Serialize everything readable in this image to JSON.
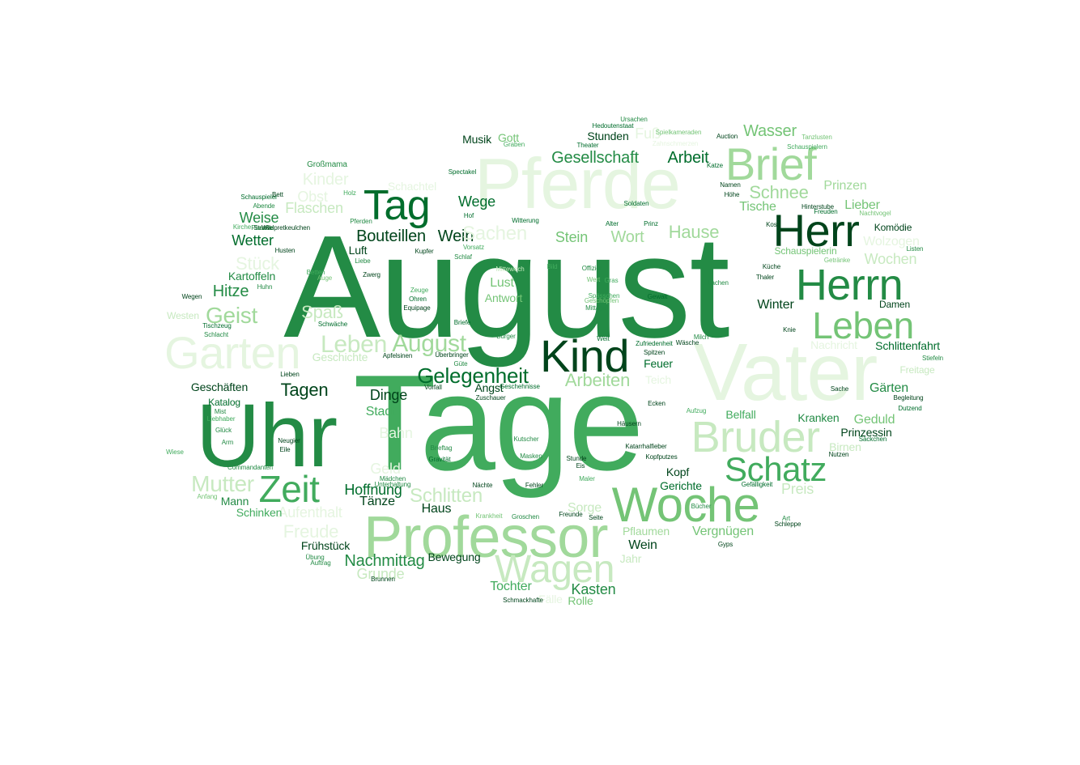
{
  "colors": {
    "background": "#ffffff",
    "palette": [
      "#00441b",
      "#006d2c",
      "#238b45",
      "#41ab5d",
      "#74c476",
      "#a1d99b",
      "#c7e9c0",
      "#e5f5e0"
    ]
  },
  "words": [
    {
      "text": "August",
      "tone": 2
    },
    {
      "text": "Tage",
      "tone": 3
    },
    {
      "text": "Vater",
      "tone": 7
    },
    {
      "text": "Pferde",
      "tone": 7
    },
    {
      "text": "Professor",
      "tone": 5
    },
    {
      "text": "Woche",
      "tone": 4
    },
    {
      "text": "Uhr",
      "tone": 2
    },
    {
      "text": "Herr",
      "tone": 0
    },
    {
      "text": "Herrn",
      "tone": 2
    },
    {
      "text": "Brief",
      "tone": 5
    },
    {
      "text": "Bruder",
      "tone": 6
    },
    {
      "text": "Garten",
      "tone": 7
    },
    {
      "text": "Leben",
      "tone": 4
    },
    {
      "text": "Kind",
      "tone": 0
    },
    {
      "text": "Tag",
      "tone": 1
    },
    {
      "text": "Wagen",
      "tone": 6
    },
    {
      "text": "Schatz",
      "tone": 3
    },
    {
      "text": "Zeit",
      "tone": 3
    },
    {
      "text": "Gelegenheit",
      "tone": 1
    },
    {
      "text": "Leben",
      "tone": 6
    },
    {
      "text": "August",
      "tone": 5
    },
    {
      "text": "Gesellschaft",
      "tone": 2
    },
    {
      "text": "Arbeiten",
      "tone": 5
    },
    {
      "text": "Schnee",
      "tone": 5
    },
    {
      "text": "Wasser",
      "tone": 4
    },
    {
      "text": "Geist",
      "tone": 5
    },
    {
      "text": "Mutter",
      "tone": 6
    },
    {
      "text": "Bouteillen",
      "tone": 0
    },
    {
      "text": "Wein",
      "tone": 0
    },
    {
      "text": "Tagen",
      "tone": 0
    },
    {
      "text": "Hause",
      "tone": 5
    },
    {
      "text": "Schlitten",
      "tone": 6
    },
    {
      "text": "Nachmittag",
      "tone": 2
    },
    {
      "text": "Arbeit",
      "tone": 1
    },
    {
      "text": "Wort",
      "tone": 5
    },
    {
      "text": "Stein",
      "tone": 4
    },
    {
      "text": "Sachen",
      "tone": 7
    },
    {
      "text": "Kinder",
      "tone": 7
    },
    {
      "text": "Obst",
      "tone": 7
    },
    {
      "text": "Flaschen",
      "tone": 6
    },
    {
      "text": "Wetter",
      "tone": 1
    },
    {
      "text": "Weise",
      "tone": 2
    },
    {
      "text": "Stück",
      "tone": 7
    },
    {
      "text": "Hitze",
      "tone": 2
    },
    {
      "text": "Spaß",
      "tone": 6
    },
    {
      "text": "Wege",
      "tone": 1
    },
    {
      "text": "Dinge",
      "tone": 0
    },
    {
      "text": "Stadt",
      "tone": 3
    },
    {
      "text": "Bahn",
      "tone": 7
    },
    {
      "text": "Hoffnung",
      "tone": 1
    },
    {
      "text": "Tänze",
      "tone": 0
    },
    {
      "text": "Haus",
      "tone": 0
    },
    {
      "text": "Freude",
      "tone": 7
    },
    {
      "text": "Aufenthalt",
      "tone": 7
    },
    {
      "text": "Frühstück",
      "tone": 0
    },
    {
      "text": "Bewegung",
      "tone": 0
    },
    {
      "text": "Grunde",
      "tone": 6
    },
    {
      "text": "Tochter",
      "tone": 3
    },
    {
      "text": "Fälle",
      "tone": 7
    },
    {
      "text": "Kasten",
      "tone": 2
    },
    {
      "text": "Rolle",
      "tone": 4
    },
    {
      "text": "Sorge",
      "tone": 6
    },
    {
      "text": "Lust",
      "tone": 4
    },
    {
      "text": "Antwort",
      "tone": 4
    },
    {
      "text": "Musik",
      "tone": 0
    },
    {
      "text": "Gott",
      "tone": 4
    },
    {
      "text": "Stunden",
      "tone": 0
    },
    {
      "text": "Fuß",
      "tone": 7
    },
    {
      "text": "Prinzen",
      "tone": 5
    },
    {
      "text": "Tische",
      "tone": 4
    },
    {
      "text": "Lieber",
      "tone": 4
    },
    {
      "text": "Komödie",
      "tone": 0
    },
    {
      "text": "Wolzogen",
      "tone": 7
    },
    {
      "text": "Wochen",
      "tone": 6
    },
    {
      "text": "Schauspielerin",
      "tone": 4
    },
    {
      "text": "Damen",
      "tone": 0
    },
    {
      "text": "Winter",
      "tone": 0
    },
    {
      "text": "Schlittenfahrt",
      "tone": 1
    },
    {
      "text": "Nachricht",
      "tone": 7
    },
    {
      "text": "Gärten",
      "tone": 2
    },
    {
      "text": "Freitage",
      "tone": 6
    },
    {
      "text": "Kranken",
      "tone": 2
    },
    {
      "text": "Geduld",
      "tone": 4
    },
    {
      "text": "Prinzessin",
      "tone": 0
    },
    {
      "text": "Birnen",
      "tone": 6
    },
    {
      "text": "Preis",
      "tone": 6
    },
    {
      "text": "Belfall",
      "tone": 3
    },
    {
      "text": "Kopf",
      "tone": 0
    },
    {
      "text": "Gerichte",
      "tone": 1
    },
    {
      "text": "Feuer",
      "tone": 1
    },
    {
      "text": "Vergnügen",
      "tone": 4
    },
    {
      "text": "Pflaumen",
      "tone": 5
    },
    {
      "text": "Wein",
      "tone": 0
    },
    {
      "text": "Jahr",
      "tone": 6
    },
    {
      "text": "Kartoffeln",
      "tone": 2
    },
    {
      "text": "Geschäften",
      "tone": 0
    },
    {
      "text": "Katalog",
      "tone": 1
    },
    {
      "text": "Mann",
      "tone": 2
    },
    {
      "text": "Schinken",
      "tone": 3
    },
    {
      "text": "Westen",
      "tone": 6
    },
    {
      "text": "Geld",
      "tone": 7
    },
    {
      "text": "Angst",
      "tone": 0
    },
    {
      "text": "Luft",
      "tone": 0
    },
    {
      "text": "Teich",
      "tone": 7
    },
    {
      "text": "Geschichte",
      "tone": 6
    },
    {
      "text": "Großmama",
      "tone": 2
    },
    {
      "text": "Schachtel",
      "tone": 7
    },
    {
      "text": "Spectakel",
      "tone": 1
    },
    {
      "text": "Zahnschmerzen",
      "tone": 7
    },
    {
      "text": "Hedoutenstaat",
      "tone": 1
    },
    {
      "text": "Theater",
      "tone": 1
    },
    {
      "text": "Auction",
      "tone": 0
    },
    {
      "text": "Tanzlusten",
      "tone": 4
    },
    {
      "text": "Katze",
      "tone": 1
    },
    {
      "text": "Namen",
      "tone": 0
    },
    {
      "text": "Höhe",
      "tone": 0
    },
    {
      "text": "Hinterstube",
      "tone": 0
    },
    {
      "text": "Freuden",
      "tone": 1
    },
    {
      "text": "Nachtvogel",
      "tone": 4
    },
    {
      "text": "Kost",
      "tone": 0
    },
    {
      "text": "Getränke",
      "tone": 4
    },
    {
      "text": "Küche",
      "tone": 0
    },
    {
      "text": "Thaler",
      "tone": 0
    },
    {
      "text": "Lachen",
      "tone": 2
    },
    {
      "text": "Knie",
      "tone": 0
    },
    {
      "text": "Stiefeln",
      "tone": 2
    },
    {
      "text": "Begleitung",
      "tone": 0
    },
    {
      "text": "Dutzend",
      "tone": 1
    },
    {
      "text": "Listen",
      "tone": 2
    },
    {
      "text": "Sache",
      "tone": 0
    },
    {
      "text": "Nutzen",
      "tone": 0
    },
    {
      "text": "Säckchen",
      "tone": 1
    },
    {
      "text": "Häusern",
      "tone": 0
    },
    {
      "text": "Katarrhalfieber",
      "tone": 0
    },
    {
      "text": "Kopfputzes",
      "tone": 0
    },
    {
      "text": "Gefälligkeit",
      "tone": 1
    },
    {
      "text": "Art",
      "tone": 2
    },
    {
      "text": "Schleppe",
      "tone": 0
    },
    {
      "text": "Gyps",
      "tone": 0
    },
    {
      "text": "Bücher",
      "tone": 2
    },
    {
      "text": "Ecken",
      "tone": 0
    },
    {
      "text": "Aufzug",
      "tone": 3
    },
    {
      "text": "Zufriedenheit",
      "tone": 1
    },
    {
      "text": "Spitzen",
      "tone": 0
    },
    {
      "text": "Wäsche",
      "tone": 0
    },
    {
      "text": "Milch",
      "tone": 2
    },
    {
      "text": "Welt",
      "tone": 1
    },
    {
      "text": "Offizier",
      "tone": 2
    },
    {
      "text": "Soldaten",
      "tone": 1
    },
    {
      "text": "Prinz",
      "tone": 1
    },
    {
      "text": "Alter",
      "tone": 1
    },
    {
      "text": "Gewalt",
      "tone": 1
    },
    {
      "text": "Mittewoch",
      "tone": 6
    },
    {
      "text": "Bild",
      "tone": 3
    },
    {
      "text": "Zeuge",
      "tone": 3
    },
    {
      "text": "Ohren",
      "tone": 1
    },
    {
      "text": "Equipage",
      "tone": 0
    },
    {
      "text": "Briefe",
      "tone": 1
    },
    {
      "text": "Bürger",
      "tone": 2
    },
    {
      "text": "Apfelsinen",
      "tone": 0
    },
    {
      "text": "Überbringer",
      "tone": 0
    },
    {
      "text": "Vorfall",
      "tone": 0
    },
    {
      "text": "Geschehnisse",
      "tone": 1
    },
    {
      "text": "Zuschauer",
      "tone": 0
    },
    {
      "text": "Brieftag",
      "tone": 2
    },
    {
      "text": "Gravität",
      "tone": 1
    },
    {
      "text": "Kutscher",
      "tone": 2
    },
    {
      "text": "Masken",
      "tone": 2
    },
    {
      "text": "Stunde",
      "tone": 0
    },
    {
      "text": "Eis",
      "tone": 0
    },
    {
      "text": "Maler",
      "tone": 3
    },
    {
      "text": "Nächte",
      "tone": 0
    },
    {
      "text": "Fehler",
      "tone": 0
    },
    {
      "text": "Krankheit",
      "tone": 4
    },
    {
      "text": "Groschen",
      "tone": 2
    },
    {
      "text": "Freunde",
      "tone": 0
    },
    {
      "text": "Seite",
      "tone": 0
    },
    {
      "text": "Mädchen",
      "tone": 2
    },
    {
      "text": "Unterhaltung",
      "tone": 2
    },
    {
      "text": "Commandanten",
      "tone": 2
    },
    {
      "text": "Neugier",
      "tone": 0
    },
    {
      "text": "Eile",
      "tone": 0
    },
    {
      "text": "Wiese",
      "tone": 3
    },
    {
      "text": "Arm",
      "tone": 2
    },
    {
      "text": "Glück",
      "tone": 2
    },
    {
      "text": "Liebhaber",
      "tone": 3
    },
    {
      "text": "Mist",
      "tone": 2
    },
    {
      "text": "Anfang",
      "tone": 4
    },
    {
      "text": "Übung",
      "tone": 2
    },
    {
      "text": "Auftrag",
      "tone": 2
    },
    {
      "text": "Brunnen",
      "tone": 0
    },
    {
      "text": "Schmackhafte",
      "tone": 0
    },
    {
      "text": "Pferden",
      "tone": 2
    },
    {
      "text": "Wildpretkeulchen",
      "tone": 0
    },
    {
      "text": "Straße",
      "tone": 0
    },
    {
      "text": "Husten",
      "tone": 0
    },
    {
      "text": "Liebe",
      "tone": 2
    },
    {
      "text": "Abende",
      "tone": 2
    },
    {
      "text": "Schauspieler",
      "tone": 1
    },
    {
      "text": "Bett",
      "tone": 0
    },
    {
      "text": "Holz",
      "tone": 3
    },
    {
      "text": "Kirche",
      "tone": 3
    },
    {
      "text": "Flasche",
      "tone": 2
    },
    {
      "text": "Betten",
      "tone": 3
    },
    {
      "text": "Auge",
      "tone": 4
    },
    {
      "text": "Zwerg",
      "tone": 0
    },
    {
      "text": "Huhn",
      "tone": 2
    },
    {
      "text": "Wegen",
      "tone": 0
    },
    {
      "text": "Tischzeug",
      "tone": 1
    },
    {
      "text": "Schlacht",
      "tone": 2
    },
    {
      "text": "Schwäche",
      "tone": 1
    },
    {
      "text": "Lieben",
      "tone": 0
    },
    {
      "text": "Witterung",
      "tone": 1
    },
    {
      "text": "Hof",
      "tone": 1
    },
    {
      "text": "Vorsatz",
      "tone": 3
    },
    {
      "text": "Schlaf",
      "tone": 2
    },
    {
      "text": "Kupfer",
      "tone": 0
    },
    {
      "text": "Güte",
      "tone": 2
    },
    {
      "text": "Ursachen",
      "tone": 2
    },
    {
      "text": "Spielkameraden",
      "tone": 4
    },
    {
      "text": "Graben",
      "tone": 3
    },
    {
      "text": "Schauspielern",
      "tone": 3
    },
    {
      "text": "Mittage",
      "tone": 2
    },
    {
      "text": "Gras",
      "tone": 3
    },
    {
      "text": "Wert",
      "tone": 4
    },
    {
      "text": "Geschöpfen",
      "tone": 4
    },
    {
      "text": "Spässchen",
      "tone": 3
    },
    {
      "text": "Schale",
      "tone": 4
    }
  ]
}
